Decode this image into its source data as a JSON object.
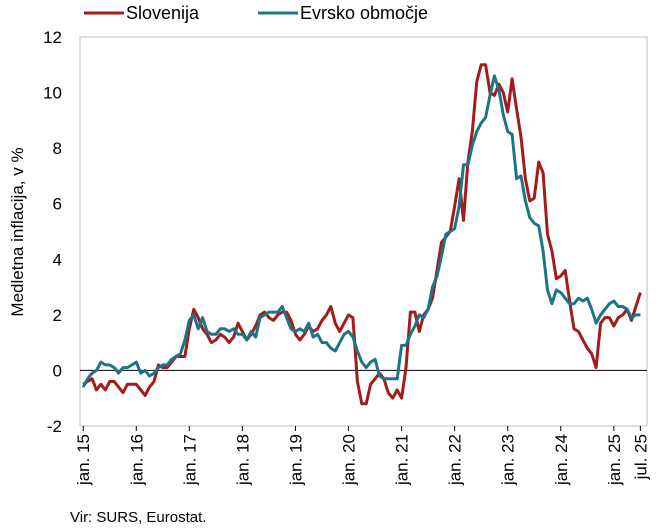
{
  "chart_data": {
    "type": "line",
    "ylabel": "Medletna inflacija, v %",
    "source": "Vir: SURS, Eurostat.",
    "ylim": [
      -2,
      12
    ],
    "yticks": [
      -2,
      0,
      2,
      4,
      6,
      8,
      10,
      12
    ],
    "xlabels": [
      "jan. 15",
      "jan. 16",
      "jan. 17",
      "jan. 18",
      "jan. 19",
      "jan. 20",
      "jan. 21",
      "jan. 22",
      "jan. 23",
      "jan. 24",
      "jan. 25",
      "jul. 25"
    ],
    "xlabel_months": [
      0,
      12,
      24,
      36,
      48,
      60,
      72,
      84,
      96,
      108,
      120,
      126
    ],
    "x_start": "2015-01",
    "zero_line": true,
    "series": [
      {
        "name": "Slovenija",
        "color": "#a31c1c",
        "values": [
          -0.5,
          -0.4,
          -0.3,
          -0.7,
          -0.5,
          -0.7,
          -0.4,
          -0.4,
          -0.6,
          -0.8,
          -0.5,
          -0.5,
          -0.5,
          -0.7,
          -0.9,
          -0.6,
          -0.4,
          0.2,
          0.1,
          0.1,
          0.3,
          0.5,
          0.5,
          0.5,
          1.5,
          2.2,
          1.9,
          1.5,
          1.3,
          1.0,
          1.1,
          1.3,
          1.2,
          1.0,
          1.2,
          1.7,
          1.4,
          1.1,
          1.3,
          1.6,
          2.0,
          2.1,
          1.9,
          1.8,
          2.0,
          2.1,
          2.1,
          1.8,
          1.3,
          1.1,
          1.3,
          1.6,
          1.4,
          1.5,
          1.8,
          2.0,
          2.3,
          1.7,
          1.4,
          1.7,
          2.0,
          1.9,
          -0.4,
          -1.2,
          -1.2,
          -0.5,
          -0.3,
          -0.1,
          -0.3,
          -0.8,
          -1.0,
          -0.7,
          -1.0,
          0.1,
          2.1,
          2.1,
          1.4,
          2.0,
          2.2,
          2.6,
          3.6,
          4.6,
          4.8,
          5.0,
          5.9,
          6.9,
          5.4,
          7.5,
          8.6,
          10.4,
          11.0,
          11.0,
          10.0,
          9.9,
          10.3,
          10.0,
          9.3,
          10.5,
          9.4,
          8.4,
          6.9,
          6.1,
          6.2,
          7.5,
          7.1,
          4.9,
          4.3,
          3.3,
          3.4,
          3.6,
          2.5,
          1.5,
          1.4,
          1.1,
          0.8,
          0.6,
          0.1,
          1.7,
          1.9,
          1.9,
          1.6,
          1.9,
          2.0,
          2.2,
          1.8,
          2.3,
          2.8
        ]
      },
      {
        "name": "Evrsko območje",
        "color": "#1e7487",
        "values": [
          -0.6,
          -0.3,
          -0.1,
          0.0,
          0.3,
          0.2,
          0.2,
          0.1,
          -0.1,
          0.1,
          0.1,
          0.2,
          0.3,
          -0.1,
          0.0,
          -0.2,
          -0.1,
          0.1,
          0.2,
          0.2,
          0.4,
          0.5,
          0.6,
          1.1,
          1.8,
          2.0,
          1.5,
          1.9,
          1.4,
          1.3,
          1.3,
          1.5,
          1.5,
          1.4,
          1.5,
          1.3,
          1.3,
          1.1,
          1.4,
          1.2,
          1.9,
          2.0,
          2.1,
          2.1,
          2.1,
          2.3,
          1.9,
          1.5,
          1.4,
          1.5,
          1.4,
          1.7,
          1.2,
          1.3,
          1.0,
          1.0,
          0.8,
          0.7,
          1.0,
          1.3,
          1.4,
          1.2,
          0.7,
          0.3,
          0.1,
          0.3,
          0.4,
          -0.2,
          -0.3,
          -0.3,
          -0.3,
          -0.3,
          0.9,
          0.9,
          1.3,
          1.6,
          2.0,
          1.9,
          2.2,
          3.0,
          3.4,
          4.1,
          4.9,
          5.0,
          5.1,
          5.9,
          7.4,
          7.4,
          8.1,
          8.6,
          8.9,
          9.1,
          9.9,
          10.6,
          10.1,
          9.2,
          8.6,
          8.5,
          6.9,
          7.0,
          6.1,
          5.5,
          5.3,
          5.2,
          4.3,
          2.9,
          2.4,
          2.9,
          2.8,
          2.6,
          2.4,
          2.4,
          2.6,
          2.5,
          2.6,
          2.2,
          1.7,
          2.0,
          2.2,
          2.4,
          2.5,
          2.3,
          2.3,
          2.2,
          1.9,
          2.0,
          2.0
        ]
      }
    ]
  }
}
